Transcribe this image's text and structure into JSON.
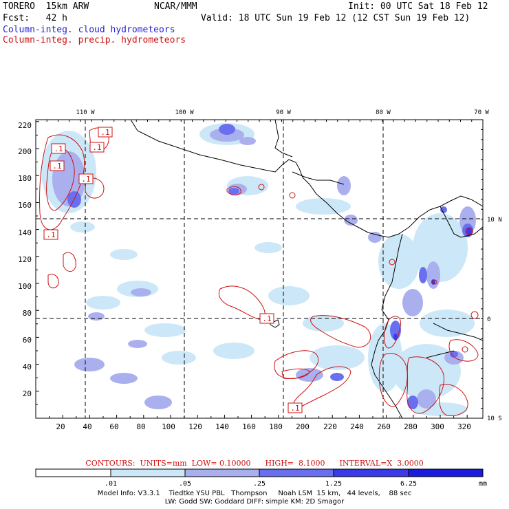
{
  "header": {
    "model": "TORERO  15km ARW",
    "org": "NCAR/MMM",
    "init": "Init: 00 UTC Sat 18 Feb 12",
    "fcst": "Fcst:   42 h",
    "valid": "Valid: 18 UTC Sun 19 Feb 12 (12 CST Sun 19 Feb 12)",
    "line_blue": "Column-integ. cloud hydrometeors",
    "line_red": "Column-integ. precip. hydrometeors"
  },
  "map": {
    "top_lon_labels": [
      "110 W",
      "100 W",
      "90 W",
      "80 W",
      "70 W"
    ],
    "right_lat_labels": [
      "10 N",
      "0",
      "10 S"
    ],
    "y_ticks": [
      "220",
      "200",
      "180",
      "160",
      "140",
      "120",
      "100",
      "80",
      "60",
      "40",
      "20"
    ],
    "x_ticks": [
      "20",
      "40",
      "60",
      "80",
      "100",
      "120",
      "140",
      "160",
      "180",
      "200",
      "220",
      "240",
      "260",
      "280",
      "300",
      "320"
    ],
    "contour_labels": [
      ".1",
      ".1",
      ".1",
      ".1",
      ".1",
      ".1",
      ".1",
      ".1"
    ],
    "colors": {
      "light": "#cce8f8",
      "lavender": "#aab0ee",
      "medium": "#6a6ff0",
      "strong": "#3a3ae8",
      "deep": "#1c1ce0",
      "contour": "#cc1111"
    }
  },
  "colorbar": {
    "tick_labels": [
      ".01",
      ".05",
      ".25",
      "1.25",
      "6.25"
    ],
    "unit": "mm",
    "colors": [
      "#ffffff",
      "#cce8f8",
      "#aab0ee",
      "#6a6ff0",
      "#3a3ae8",
      "#1c1ce0"
    ]
  },
  "contour_info": "CONTOURS:  UNITS=mm  LOW= 0.10000      HIGH=  8.1000      INTERVAL=X  3.0000",
  "model_info_1": "Model Info: V3.3.1    Tiedtke YSU PBL   Thompson     Noah LSM  15 km,   44 levels,    88 sec",
  "model_info_2": "LW: Godd SW: Goddard DIFF: simple KM: 2D Smagor"
}
